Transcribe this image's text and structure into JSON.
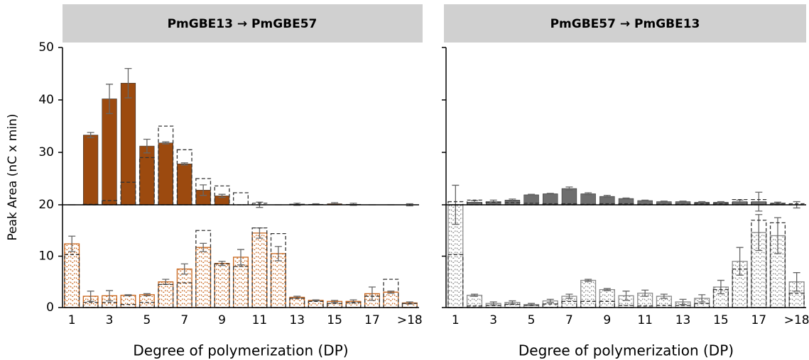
{
  "chart_data": [
    {
      "type": "bar",
      "title": "PmGBE13 → PmGBE57",
      "xlabel": "Degree of polymerization (DP)",
      "ylabel": "Peak Area (nC x min)",
      "show_ytick_labels": true,
      "categories": [
        "1",
        null,
        "3",
        null,
        "5",
        null,
        "7",
        null,
        "9",
        null,
        "11",
        null,
        "13",
        null,
        "15",
        null,
        "17",
        null,
        ">18"
      ],
      "upper": {
        "ylim": [
          20,
          50
        ],
        "yticks": [
          20,
          30,
          40,
          50
        ],
        "series": [
          {
            "color": "#9c4a0f",
            "style": "solid",
            "values": [
              20,
              33.3,
              40.2,
              43.2,
              31.2,
              31.8,
              27.8,
              22.8,
              21.7,
              20,
              20,
              20,
              20.1,
              20.1,
              20.2,
              20.1,
              20,
              20,
              20
            ],
            "errors": [
              0,
              0.5,
              2.8,
              2.8,
              1.3,
              0.2,
              0.2,
              1,
              0.3,
              0,
              0.5,
              0,
              0.2,
              0.1,
              0.2,
              0.2,
              0,
              0,
              0.2
            ]
          },
          {
            "color": "#333333",
            "style": "dashed",
            "values": [
              20,
              20.1,
              20.8,
              24.3,
              29,
              35,
              30.5,
              25,
              23.6,
              22.3,
              20.3,
              20,
              20.1,
              20,
              20,
              20,
              20,
              20,
              20
            ]
          }
        ]
      },
      "lower": {
        "ylim": [
          0,
          20
        ],
        "yticks": [
          0,
          10
        ],
        "series": [
          {
            "color": "#c8651b",
            "style": "wavy",
            "values": [
              12.4,
              2.2,
              2.3,
              2.4,
              2.5,
              5,
              7.5,
              11.7,
              8.6,
              9.8,
              14.5,
              10.5,
              2,
              1.4,
              1.2,
              1.2,
              2.7,
              3,
              0.9
            ],
            "errors": [
              1.5,
              1,
              1,
              0.1,
              0.2,
              0.5,
              1,
              0.8,
              0.4,
              1.5,
              1,
              1.4,
              0.2,
              0.1,
              0.2,
              0.3,
              1.3,
              0.2,
              0.2
            ]
          },
          {
            "color": "#333333",
            "style": "dashed",
            "values": [
              10.3,
              1,
              1,
              0.6,
              1,
              4.5,
              4.8,
              15,
              8.5,
              8,
              15.5,
              14.4,
              1.8,
              1.2,
              0.8,
              1,
              2.2,
              5.5,
              0.8
            ]
          }
        ]
      }
    },
    {
      "type": "bar",
      "title": "PmGBE57 → PmGBE13",
      "xlabel": "Degree of polymerization (DP)",
      "show_ytick_labels": false,
      "categories": [
        "1",
        null,
        "3",
        null,
        "5",
        null,
        "7",
        null,
        "9",
        null,
        "11",
        null,
        "13",
        null,
        "15",
        null,
        "17",
        null,
        ">18"
      ],
      "upper": {
        "ylim": [
          20,
          50
        ],
        "yticks": [
          20,
          30,
          40,
          50
        ],
        "series": [
          {
            "color": "#6e6e6e",
            "style": "solid",
            "values": [
              20,
              20.5,
              20.6,
              20.9,
              21.9,
              22.1,
              23.1,
              22.1,
              21.6,
              21.2,
              20.8,
              20.6,
              20.6,
              20.5,
              20.5,
              20.6,
              20.6,
              20.3,
              20
            ],
            "errors": [
              0,
              0.3,
              0.3,
              0.2,
              0.1,
              0.1,
              0.3,
              0.2,
              0.2,
              0.1,
              0.1,
              0.1,
              0.1,
              0.1,
              0.1,
              0.3,
              1.8,
              0.2,
              0.6
            ]
          },
          {
            "color": "#333333",
            "style": "dashed",
            "values": [
              20.6,
              20.9,
              20.5,
              20.4,
              20.3,
              20.2,
              20.2,
              20.1,
              20.2,
              20.2,
              20.1,
              20.1,
              20.1,
              20.2,
              20.2,
              21,
              21,
              20.3,
              20.2
            ]
          }
        ]
      },
      "lower": {
        "ylim": [
          0,
          20
        ],
        "yticks": [
          0,
          10
        ],
        "series": [
          {
            "color": "#8a8a8a",
            "style": "wavy",
            "values": [
              20,
              2.4,
              0.8,
              1,
              0.6,
              1.3,
              2.2,
              5.3,
              3.5,
              2.3,
              2.8,
              2.2,
              1.1,
              1.8,
              4,
              9,
              14.6,
              14,
              5
            ],
            "errors": [
              3.8,
              0.2,
              0.3,
              0.3,
              0.2,
              0.3,
              0.4,
              0.2,
              0.2,
              0.9,
              0.6,
              0.4,
              0.5,
              0.7,
              1.3,
              2.7,
              3.5,
              3.5,
              1.8
            ]
          },
          {
            "color": "#333333",
            "style": "dashed",
            "values": [
              10.3,
              0.3,
              0.4,
              0.6,
              0.4,
              0.7,
              1.2,
              1.2,
              1.2,
              0.4,
              0.3,
              0.4,
              0.4,
              0.8,
              3.5,
              7.5,
              17,
              16.5,
              2.8
            ]
          }
        ]
      }
    }
  ]
}
